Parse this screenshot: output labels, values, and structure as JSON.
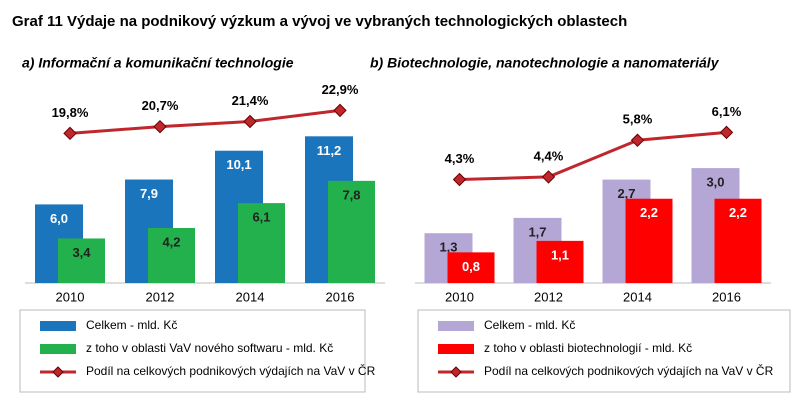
{
  "title": "Graf 11 Výdaje na podnikový výzkum a vývoj ve vybraných technologických oblastech",
  "chart_data": [
    {
      "type": "bar",
      "title": "a) Informační a komunikační technologie",
      "categories": [
        "2010",
        "2012",
        "2014",
        "2016"
      ],
      "ylim": [
        0,
        15.5
      ],
      "y2lim": [
        -0.4,
        27
      ],
      "series": [
        {
          "name": "Celkem - mld. Kč",
          "color": "#1b75bc",
          "values": [
            6.0,
            7.9,
            10.1,
            11.2
          ],
          "value_labels": [
            "6,0",
            "7,9",
            "10,1",
            "11,2"
          ]
        },
        {
          "name": "z toho v oblasti VaV nového softwaru - mld. Kč",
          "color": "#22b14c",
          "values": [
            3.4,
            4.2,
            6.1,
            7.8
          ],
          "value_labels": [
            "3,4",
            "4,2",
            "6,1",
            "7,8"
          ]
        },
        {
          "name": "Podíl na celkových podnikových výdajích na VaV v ČR",
          "color": "#c0272d",
          "type": "line",
          "axis": "y2",
          "values": [
            19.8,
            20.7,
            21.4,
            22.9
          ],
          "value_labels": [
            "19,8%",
            "20,7%",
            "21,4%",
            "22,9%"
          ]
        }
      ]
    },
    {
      "type": "bar",
      "title": "b) Biotechnologie, nanotechnologie a nanomateriály",
      "categories": [
        "2010",
        "2012",
        "2014",
        "2016"
      ],
      "ylim": [
        0,
        5.3
      ],
      "y2lim": [
        0.35,
        8.1
      ],
      "series": [
        {
          "name": "Celkem - mld. Kč",
          "color": "#b4a7d6",
          "values": [
            1.3,
            1.7,
            2.7,
            3.0
          ],
          "value_labels": [
            "1,3",
            "1,7",
            "2,7",
            "3,0"
          ]
        },
        {
          "name": "z toho v oblasti biotechnologií - mld. Kč",
          "color": "#ff0000",
          "values": [
            0.8,
            1.1,
            2.2,
            2.2
          ],
          "value_labels": [
            "0,8",
            "1,1",
            "2,2",
            "2,2"
          ]
        },
        {
          "name": "Podíl na celkových podnikových výdajích na VaV v ČR",
          "color": "#c0272d",
          "type": "line",
          "axis": "y2",
          "values": [
            4.3,
            4.4,
            5.8,
            6.1
          ],
          "value_labels": [
            "4,3%",
            "4,4%",
            "5,8%",
            "6,1%"
          ]
        }
      ]
    }
  ]
}
